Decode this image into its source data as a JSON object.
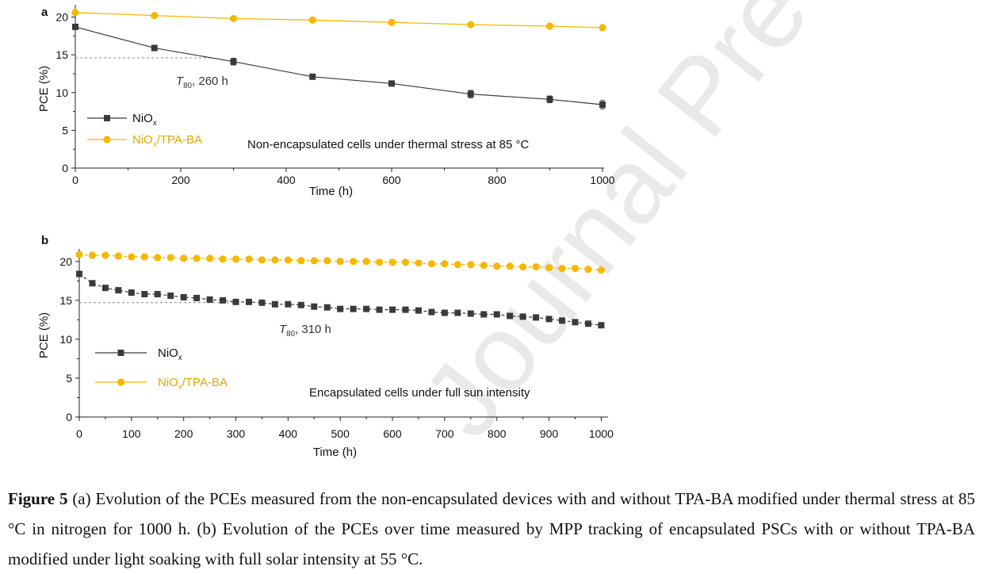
{
  "figure": {
    "watermark_text": "Journal Pre-proofs",
    "caption": {
      "label": "Figure 5",
      "text": "(a) Evolution of the PCEs measured from the non-encapsulated devices with and without TPA-BA modified under thermal stress at 85 °C in nitrogen for 1000 h. (b) Evolution of the PCEs over time measured by MPP tracking of encapsulated PSCs with or without TPA-BA modified under light soaking with full solar intensity at 55 °C."
    }
  },
  "chart_data": [
    {
      "type": "line",
      "panel_label": "a",
      "xlabel": "Time (h)",
      "ylabel": "PCE (%)",
      "xlim": [
        0,
        1000
      ],
      "ylim": [
        0,
        21
      ],
      "xticks": [
        0,
        200,
        400,
        600,
        800,
        1000
      ],
      "yticks": [
        0,
        5,
        10,
        15,
        20
      ],
      "annotation": "Non-encapsulated cells under thermal  stress at 85 °C",
      "t80": {
        "label_main": "T",
        "label_sub": "80",
        "label_rest": ", 260 h",
        "y": 14.6,
        "x_end": 260
      },
      "series": [
        {
          "name_main": "NiO",
          "name_sub": "x",
          "name_rest": "",
          "color": "#3a3a3a",
          "marker": "square",
          "x": [
            0,
            150,
            300,
            450,
            600,
            750,
            900,
            1000
          ],
          "y": [
            18.7,
            15.9,
            14.1,
            12.1,
            11.2,
            9.8,
            9.1,
            8.4
          ],
          "err": [
            0.25,
            0.35,
            0.45,
            0.25,
            0.3,
            0.5,
            0.45,
            0.55
          ]
        },
        {
          "name_main": "NiO",
          "name_sub": "x",
          "name_rest": "/TPA-BA",
          "color": "#f5b800",
          "marker": "circle",
          "x": [
            0,
            150,
            300,
            450,
            600,
            750,
            900,
            1000
          ],
          "y": [
            20.6,
            20.2,
            19.8,
            19.6,
            19.3,
            19.0,
            18.8,
            18.6
          ],
          "err": [
            0.15,
            0.15,
            0.15,
            0.15,
            0.15,
            0.15,
            0.15,
            0.15
          ]
        }
      ]
    },
    {
      "type": "line",
      "panel_label": "b",
      "xlabel": "Time (h)",
      "ylabel": "PCE (%)",
      "xlim": [
        0,
        1010
      ],
      "ylim": [
        0,
        21
      ],
      "xticks": [
        0,
        100,
        200,
        300,
        400,
        500,
        600,
        700,
        800,
        900,
        1000
      ],
      "yticks": [
        0,
        5,
        10,
        15,
        20
      ],
      "annotation": "Encapsulated cells under full sun intensity",
      "t80": {
        "label_main": "T",
        "label_sub": "80",
        "label_rest": ", 310 h",
        "y": 14.7,
        "x_end": 310
      },
      "series": [
        {
          "name_main": "NiO",
          "name_sub": "x",
          "name_rest": "",
          "color": "#3a3a3a",
          "marker": "square",
          "x": [
            0,
            25,
            50,
            75,
            100,
            125,
            150,
            175,
            200,
            225,
            250,
            275,
            300,
            325,
            350,
            375,
            400,
            425,
            450,
            475,
            500,
            525,
            550,
            575,
            600,
            625,
            650,
            675,
            700,
            725,
            750,
            775,
            800,
            825,
            850,
            875,
            900,
            925,
            950,
            975,
            1000
          ],
          "y": [
            18.4,
            17.2,
            16.6,
            16.3,
            16.0,
            15.8,
            15.8,
            15.6,
            15.4,
            15.3,
            15.1,
            15.0,
            14.8,
            14.8,
            14.7,
            14.5,
            14.5,
            14.4,
            14.2,
            14.1,
            13.9,
            13.9,
            13.9,
            13.8,
            13.8,
            13.8,
            13.7,
            13.5,
            13.4,
            13.4,
            13.3,
            13.2,
            13.2,
            13.0,
            12.9,
            12.8,
            12.6,
            12.4,
            12.2,
            12.0,
            11.8
          ]
        },
        {
          "name_main": "NiO",
          "name_sub": "x",
          "name_rest": "/TPA-BA",
          "color": "#f5b800",
          "marker": "circle",
          "x": [
            0,
            25,
            50,
            75,
            100,
            125,
            150,
            175,
            200,
            225,
            250,
            275,
            300,
            325,
            350,
            375,
            400,
            425,
            450,
            475,
            500,
            525,
            550,
            575,
            600,
            625,
            650,
            675,
            700,
            725,
            750,
            775,
            800,
            825,
            850,
            875,
            900,
            925,
            950,
            975,
            1000
          ],
          "y": [
            20.9,
            20.8,
            20.8,
            20.7,
            20.6,
            20.6,
            20.5,
            20.5,
            20.4,
            20.4,
            20.4,
            20.3,
            20.3,
            20.3,
            20.2,
            20.2,
            20.2,
            20.1,
            20.1,
            20.1,
            20.0,
            20.0,
            20.0,
            19.9,
            19.9,
            19.9,
            19.8,
            19.7,
            19.7,
            19.6,
            19.6,
            19.5,
            19.4,
            19.4,
            19.3,
            19.3,
            19.2,
            19.1,
            19.1,
            19.0,
            18.9
          ]
        }
      ]
    }
  ]
}
